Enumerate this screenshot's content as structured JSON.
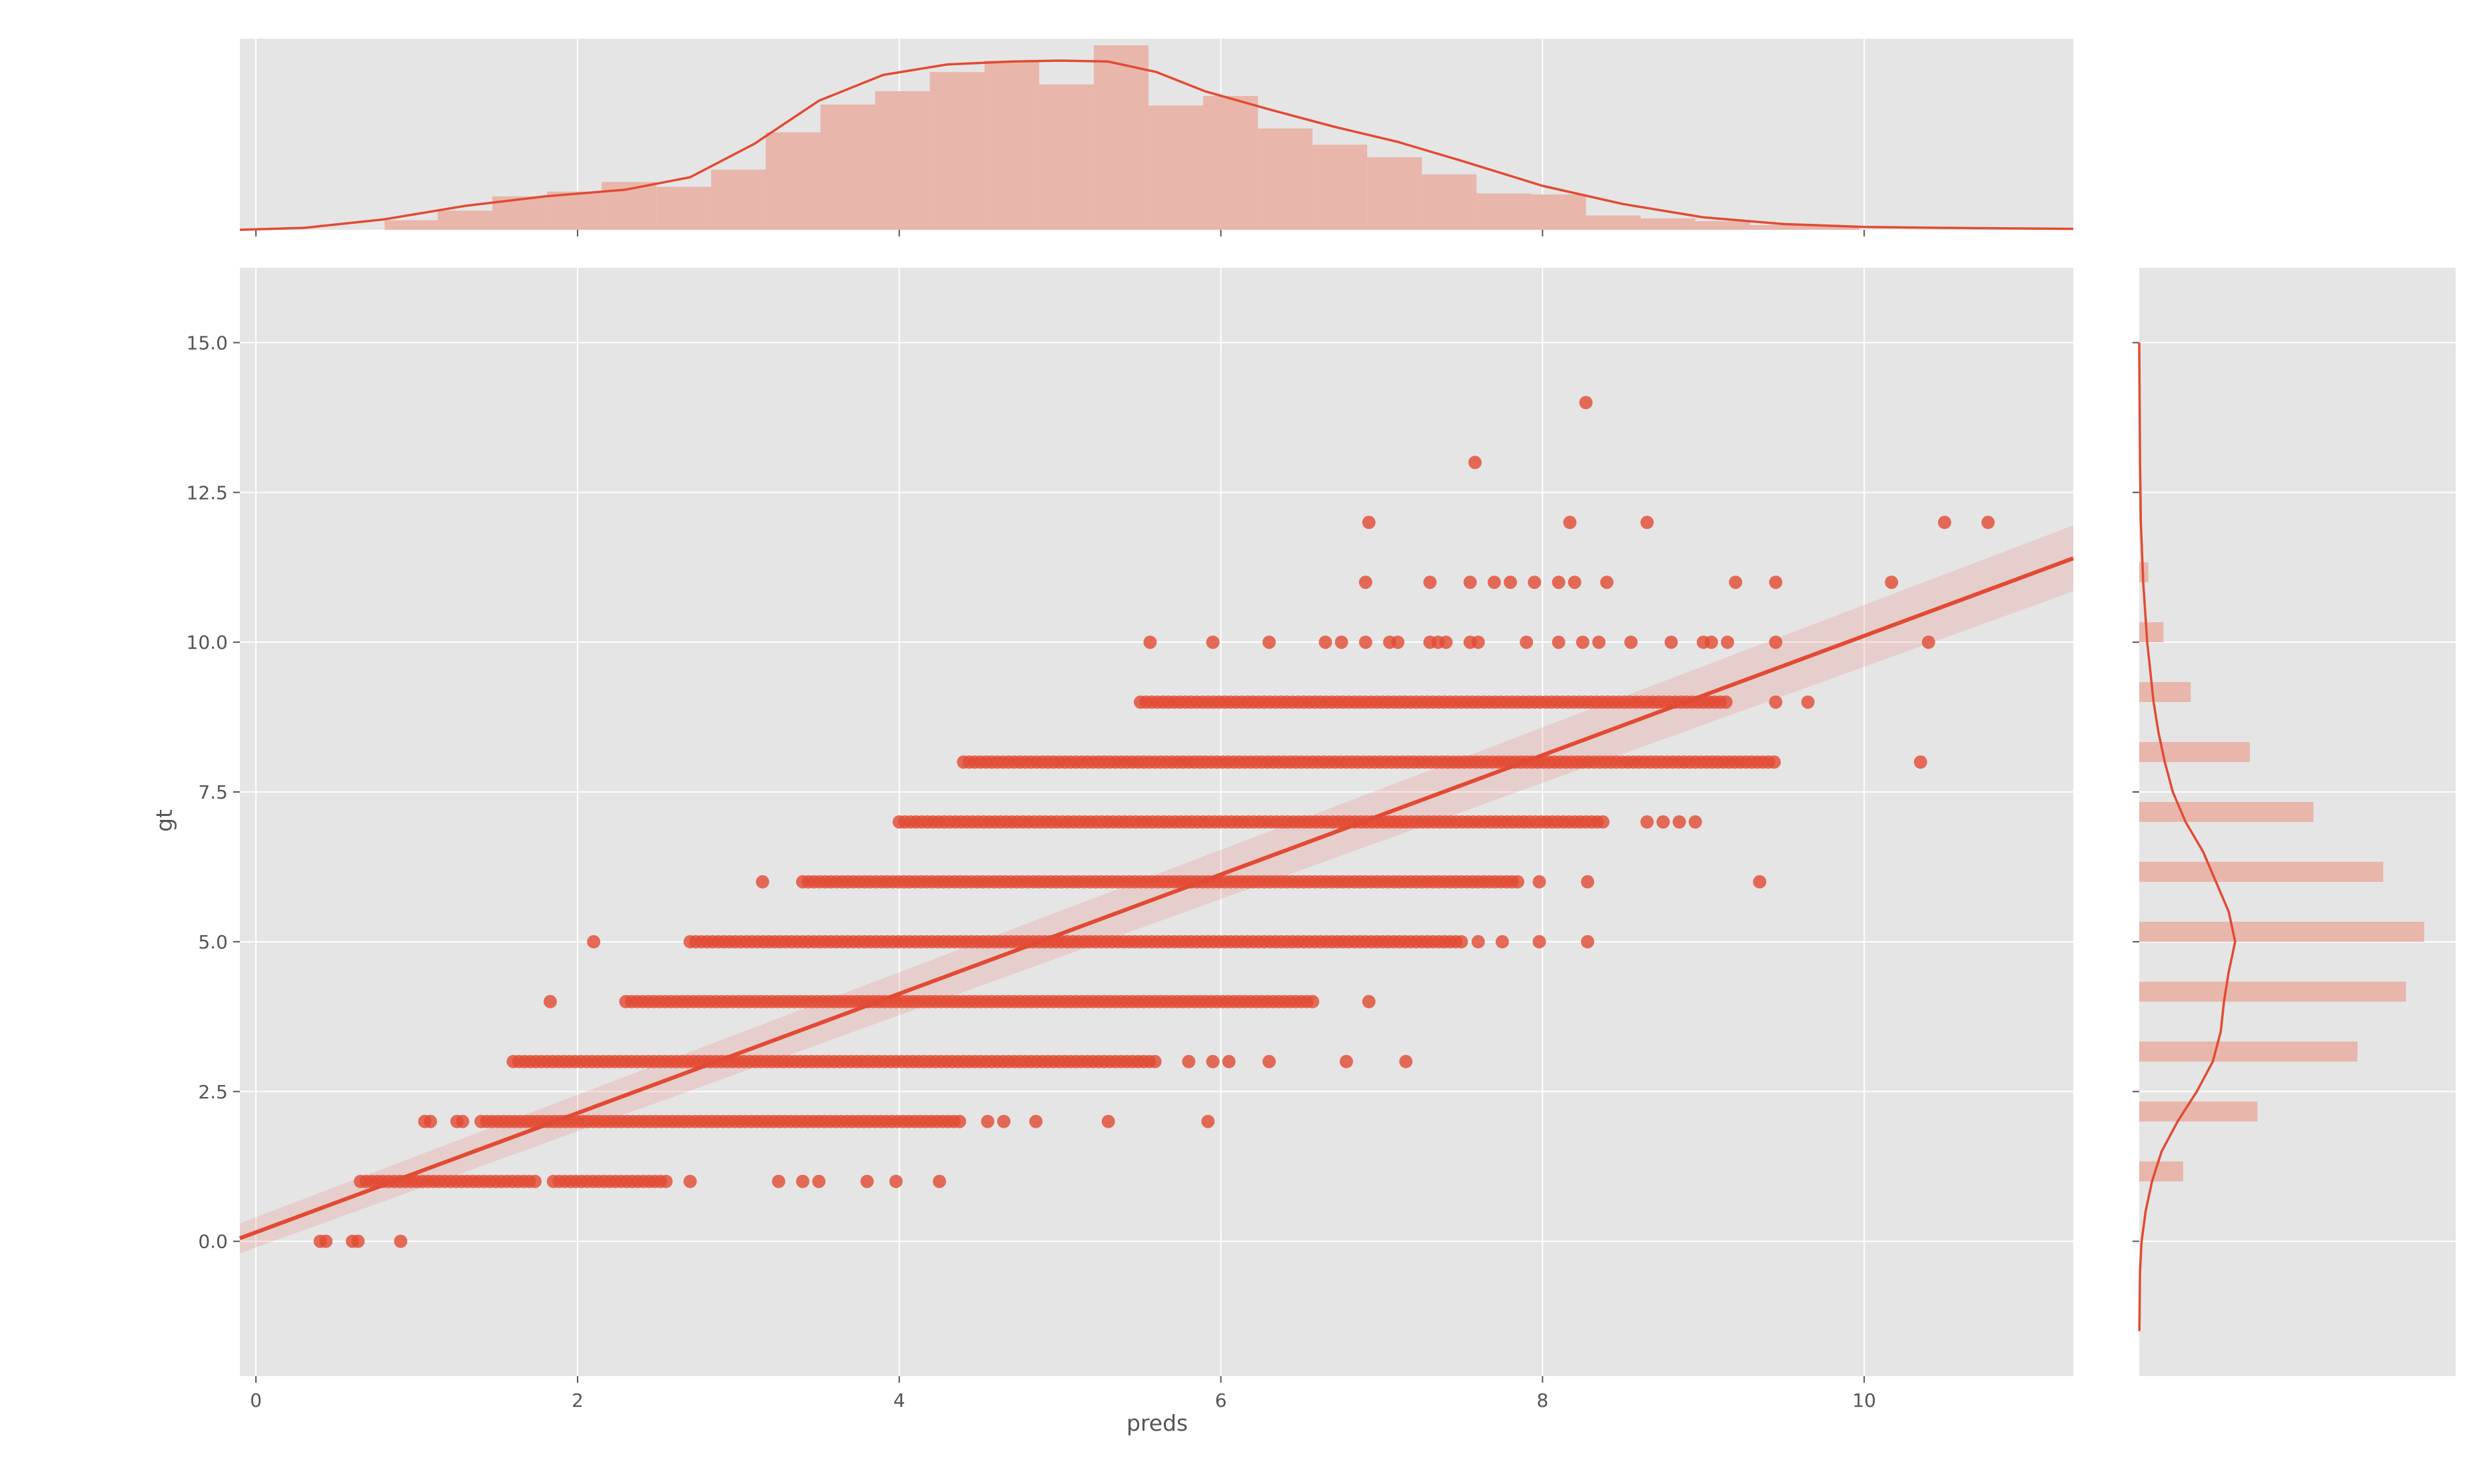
{
  "chart_data": {
    "type": "scatter",
    "style": "seaborn regplot joint plot with marginal histograms and KDE",
    "xlabel": "preds",
    "ylabel": "gt",
    "xlim": [
      -0.1,
      11.3
    ],
    "ylim": [
      -2.25,
      16.25
    ],
    "xticks": [
      0,
      2,
      4,
      6,
      8,
      10
    ],
    "xtick_labels": [
      "0",
      "2",
      "4",
      "6",
      "8",
      "10"
    ],
    "yticks": [
      0,
      2.5,
      5,
      7.5,
      10,
      12.5,
      15
    ],
    "ytick_labels": [
      "0.0",
      "2.5",
      "5.0",
      "7.5",
      "10.0",
      "12.5",
      "15.0"
    ],
    "grid": true,
    "colors": {
      "point": "#e24a33",
      "hist": "#e8b6ab",
      "panel_bg": "#e5e5e5",
      "grid": "#ffffff",
      "text": "#555555"
    },
    "regression": {
      "line": [
        [
          -0.1,
          0.05
        ],
        [
          11.3,
          11.4
        ]
      ],
      "ci_lower": [
        [
          -0.1,
          -0.2
        ],
        [
          11.3,
          10.85
        ]
      ],
      "ci_upper": [
        [
          -0.1,
          0.3
        ],
        [
          11.3,
          11.95
        ]
      ]
    },
    "point_rows": [
      {
        "y": 0,
        "ranges": [
          [
            0.4,
            0.45
          ],
          [
            0.6,
            0.65
          ]
        ],
        "xs": [
          0.9
        ]
      },
      {
        "y": 1,
        "ranges": [
          [
            0.65,
            1.75
          ],
          [
            1.85,
            2.55
          ]
        ],
        "xs": [
          2.7,
          3.25,
          3.4,
          3.5,
          3.8,
          3.98,
          4.25
        ]
      },
      {
        "y": 2,
        "ranges": [
          [
            1.05,
            1.1
          ],
          [
            1.25,
            1.3
          ],
          [
            1.4,
            4.4
          ]
        ],
        "xs": [
          4.55,
          4.65,
          4.85,
          5.3,
          5.92
        ]
      },
      {
        "y": 3,
        "ranges": [
          [
            1.6,
            5.6
          ]
        ],
        "xs": [
          5.8,
          5.95,
          6.05,
          6.3,
          6.78,
          7.15
        ]
      },
      {
        "y": 4,
        "ranges": [
          [
            2.3,
            6.6
          ]
        ],
        "xs": [
          1.83,
          6.92
        ]
      },
      {
        "y": 5,
        "ranges": [
          [
            2.7,
            7.5
          ]
        ],
        "xs": [
          2.1,
          7.6,
          7.75,
          7.98,
          8.28
        ]
      },
      {
        "y": 6,
        "ranges": [
          [
            3.4,
            7.85
          ]
        ],
        "xs": [
          3.15,
          7.98,
          8.28,
          9.35
        ]
      },
      {
        "y": 7,
        "ranges": [
          [
            4.0,
            8.4
          ]
        ],
        "xs": [
          8.65,
          8.75,
          8.85,
          8.95
        ]
      },
      {
        "y": 8,
        "ranges": [
          [
            4.4,
            9.45
          ]
        ],
        "xs": [
          10.35
        ]
      },
      {
        "y": 9,
        "ranges": [
          [
            5.5,
            9.15
          ]
        ],
        "xs": [
          9.45,
          9.65
        ]
      },
      {
        "y": 10,
        "ranges": [],
        "xs": [
          5.56,
          5.95,
          6.3,
          6.65,
          6.75,
          6.9,
          7.05,
          7.1,
          7.3,
          7.35,
          7.4,
          7.55,
          7.6,
          7.9,
          8.1,
          8.25,
          8.35,
          8.55,
          8.8,
          9.0,
          9.05,
          9.15,
          9.45,
          10.4
        ]
      },
      {
        "y": 11,
        "ranges": [],
        "xs": [
          6.9,
          7.3,
          7.55,
          7.7,
          7.8,
          7.95,
          8.1,
          8.2,
          8.4,
          9.2,
          9.45,
          10.17
        ]
      },
      {
        "y": 12,
        "ranges": [],
        "xs": [
          6.92,
          8.17,
          8.65,
          10.5,
          10.77
        ]
      },
      {
        "y": 13,
        "ranges": [],
        "xs": [
          7.58
        ]
      },
      {
        "y": 14,
        "ranges": [],
        "xs": [
          8.27
        ]
      }
    ],
    "top_histogram": {
      "bin_edges": [
        0.8,
        1.13,
        1.47,
        1.81,
        2.15,
        2.49,
        2.83,
        3.17,
        3.51,
        3.85,
        4.19,
        4.53,
        4.87,
        5.21,
        5.55,
        5.89,
        6.23,
        6.57,
        6.91,
        7.25,
        7.59,
        7.93,
        8.27,
        8.61,
        8.95,
        9.29,
        9.63,
        9.97
      ],
      "heights": [
        1.0,
        2.0,
        3.5,
        4.0,
        5.0,
        4.5,
        6.3,
        10.2,
        13.1,
        14.5,
        16.5,
        17.7,
        15.2,
        19.3,
        13.0,
        14.0,
        10.6,
        8.9,
        7.6,
        5.8,
        3.8,
        3.7,
        1.5,
        1.2,
        0.9,
        0.5,
        0.4
      ]
    },
    "top_kde": {
      "x": [
        -0.1,
        0.3,
        0.8,
        1.3,
        1.8,
        2.3,
        2.7,
        3.1,
        3.5,
        3.9,
        4.3,
        4.7,
        5.0,
        5.3,
        5.6,
        5.9,
        6.3,
        6.7,
        7.1,
        7.5,
        8.0,
        8.5,
        9.0,
        9.5,
        10.0,
        10.5,
        11.3
      ],
      "density": [
        0,
        0.2,
        1.1,
        2.5,
        3.5,
        4.2,
        5.5,
        9.0,
        13.5,
        16.2,
        17.3,
        17.6,
        17.7,
        17.6,
        16.5,
        14.5,
        12.6,
        10.8,
        9.2,
        7.2,
        4.6,
        2.7,
        1.3,
        0.6,
        0.3,
        0.2,
        0.1
      ]
    },
    "right_histogram": {
      "y": [
        0,
        1,
        2,
        3,
        4,
        5,
        6,
        7,
        8,
        9,
        10,
        11,
        12,
        13,
        14
      ],
      "counts": [
        0,
        29,
        78,
        144,
        176,
        188,
        161,
        115,
        73,
        34,
        16,
        6,
        1,
        0,
        0
      ]
    },
    "right_kde": {
      "y": [
        -1.5,
        -0.5,
        0.0,
        0.5,
        1.0,
        1.5,
        2.0,
        2.5,
        3.0,
        3.5,
        4.0,
        4.5,
        5.0,
        5.5,
        6.0,
        6.5,
        7.0,
        7.5,
        8.0,
        8.5,
        9.0,
        10.0,
        11.0,
        12.0,
        13.0,
        15.0
      ],
      "density": [
        0.01,
        0.05,
        0.15,
        0.4,
        0.8,
        1.4,
        2.4,
        3.6,
        4.6,
        5.1,
        5.3,
        5.6,
        6.0,
        5.6,
        4.8,
        4.0,
        2.9,
        2.1,
        1.6,
        1.2,
        0.9,
        0.5,
        0.25,
        0.1,
        0.05,
        0.0
      ]
    }
  }
}
